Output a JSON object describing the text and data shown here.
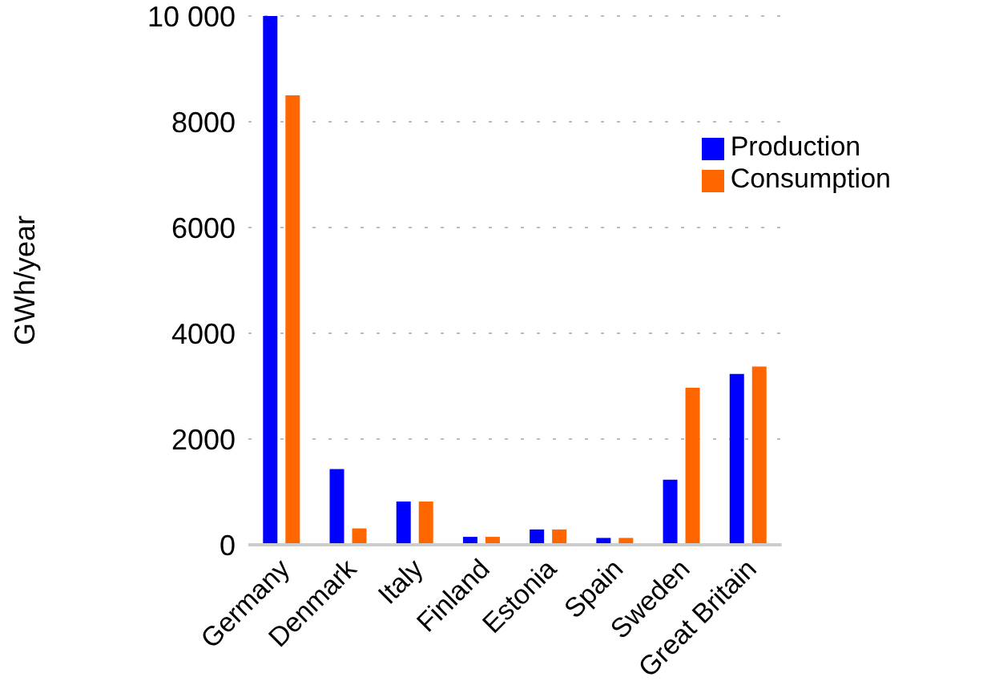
{
  "chart_data": {
    "type": "bar",
    "ylabel": "GWh/year",
    "categories": [
      "Germany",
      "Denmark",
      "Italy",
      "Finland",
      "Estonia",
      "Spain",
      "Sweden",
      "Great Britain"
    ],
    "series": [
      {
        "name": "Production",
        "color": "#0000ff",
        "values": [
          10000,
          1430,
          820,
          150,
          290,
          130,
          1230,
          3230
        ]
      },
      {
        "name": "Consumption",
        "color": "#ff6600",
        "values": [
          8500,
          310,
          820,
          150,
          290,
          130,
          2970,
          3370
        ]
      }
    ],
    "ylim": [
      0,
      10000
    ],
    "yticks": [
      0,
      2000,
      4000,
      6000,
      8000,
      {
        "value": 10000,
        "label": "10 000"
      }
    ],
    "grid": "y",
    "legend": "top right"
  }
}
